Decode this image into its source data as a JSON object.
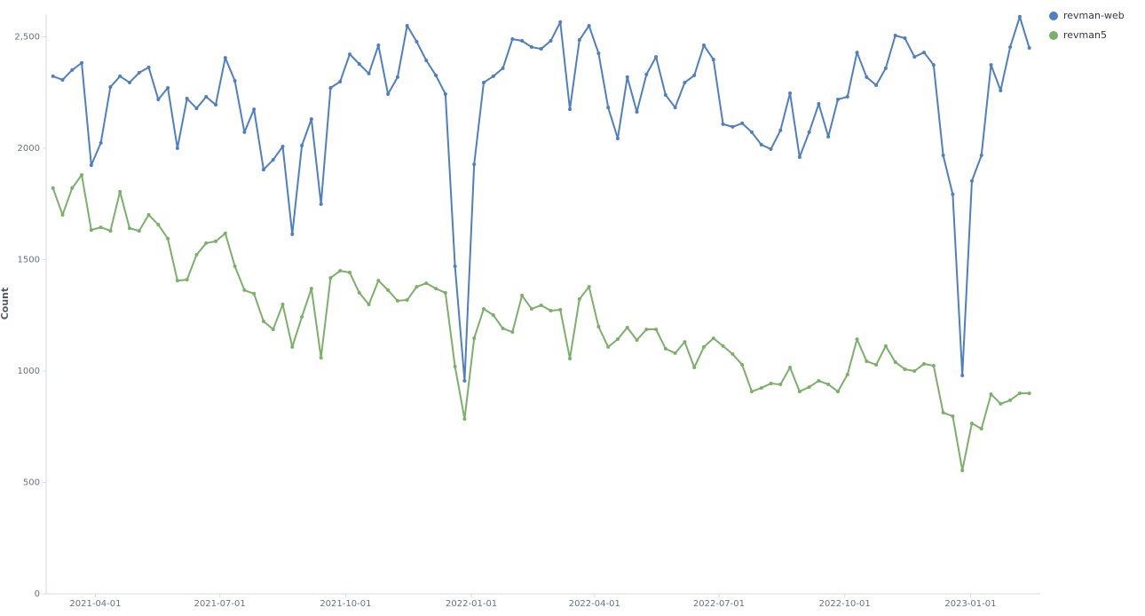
{
  "chart_data": {
    "type": "line",
    "y_label": "Count",
    "x": [
      "2021-03-01",
      "2021-03-08",
      "2021-03-15",
      "2021-03-22",
      "2021-03-29",
      "2021-04-05",
      "2021-04-12",
      "2021-04-19",
      "2021-04-26",
      "2021-05-03",
      "2021-05-10",
      "2021-05-17",
      "2021-05-24",
      "2021-05-31",
      "2021-06-07",
      "2021-06-14",
      "2021-06-21",
      "2021-06-28",
      "2021-07-05",
      "2021-07-12",
      "2021-07-19",
      "2021-07-26",
      "2021-08-02",
      "2021-08-09",
      "2021-08-16",
      "2021-08-23",
      "2021-08-30",
      "2021-09-06",
      "2021-09-13",
      "2021-09-20",
      "2021-09-27",
      "2021-10-04",
      "2021-10-11",
      "2021-10-18",
      "2021-10-25",
      "2021-11-01",
      "2021-11-08",
      "2021-11-15",
      "2021-11-22",
      "2021-11-29",
      "2021-12-06",
      "2021-12-13",
      "2021-12-20",
      "2021-12-27",
      "2022-01-03",
      "2022-01-10",
      "2022-01-17",
      "2022-01-24",
      "2022-01-31",
      "2022-02-07",
      "2022-02-14",
      "2022-02-21",
      "2022-02-28",
      "2022-03-07",
      "2022-03-14",
      "2022-03-21",
      "2022-03-28",
      "2022-04-04",
      "2022-04-11",
      "2022-04-18",
      "2022-04-25",
      "2022-05-02",
      "2022-05-09",
      "2022-05-16",
      "2022-05-23",
      "2022-05-30",
      "2022-06-06",
      "2022-06-13",
      "2022-06-20",
      "2022-06-27",
      "2022-07-04",
      "2022-07-11",
      "2022-07-18",
      "2022-07-25",
      "2022-08-01",
      "2022-08-08",
      "2022-08-15",
      "2022-08-22",
      "2022-08-29",
      "2022-09-05",
      "2022-09-12",
      "2022-09-19",
      "2022-09-26",
      "2022-10-03",
      "2022-10-10",
      "2022-10-17",
      "2022-10-24",
      "2022-10-31",
      "2022-11-07",
      "2022-11-14",
      "2022-11-21",
      "2022-11-28",
      "2022-12-05",
      "2022-12-12",
      "2022-12-19",
      "2022-12-26",
      "2023-01-02",
      "2023-01-09",
      "2023-01-16",
      "2023-01-23",
      "2023-01-30",
      "2023-02-06",
      "2023-02-13"
    ],
    "series": [
      {
        "name": "revman-web",
        "color": "#4f7fc0",
        "values": [
          2323,
          2307,
          2351,
          2383,
          1924,
          2024,
          2275,
          2323,
          2295,
          2339,
          2363,
          2219,
          2271,
          2000,
          2223,
          2179,
          2231,
          2195,
          2406,
          2303,
          2072,
          2175,
          1904,
          1948,
          2008,
          1614,
          2012,
          2131,
          1749,
          2271,
          2299,
          2422,
          2378,
          2335,
          2462,
          2243,
          2319,
          2550,
          2478,
          2394,
          2327,
          2243,
          1470,
          956,
          1928,
          2295,
          2323,
          2359,
          2490,
          2482,
          2454,
          2446,
          2482,
          2566,
          2175,
          2486,
          2550,
          2426,
          2183,
          2044,
          2319,
          2163,
          2331,
          2410,
          2239,
          2183,
          2295,
          2327,
          2462,
          2398,
          2108,
          2096,
          2112,
          2072,
          2016,
          1996,
          2080,
          2247,
          1960,
          2072,
          2199,
          2052,
          2219,
          2231,
          2430,
          2319,
          2283,
          2359,
          2506,
          2494,
          2410,
          2430,
          2374,
          1968,
          1793,
          980,
          1853,
          1968,
          2374,
          2259,
          2454,
          2590,
          2450
        ]
      },
      {
        "name": "revman5",
        "color": "#7bb069",
        "values": [
          1821,
          1701,
          1821,
          1880,
          1633,
          1645,
          1629,
          1805,
          1641,
          1629,
          1701,
          1657,
          1594,
          1406,
          1410,
          1522,
          1574,
          1582,
          1618,
          1470,
          1363,
          1347,
          1223,
          1187,
          1299,
          1108,
          1243,
          1370,
          1060,
          1418,
          1450,
          1442,
          1351,
          1299,
          1406,
          1363,
          1315,
          1319,
          1378,
          1394,
          1370,
          1351,
          1020,
          785,
          1147,
          1279,
          1251,
          1191,
          1175,
          1339,
          1279,
          1295,
          1271,
          1275,
          1056,
          1323,
          1378,
          1199,
          1108,
          1143,
          1195,
          1139,
          1187,
          1187,
          1100,
          1080,
          1131,
          1016,
          1108,
          1147,
          1112,
          1076,
          1028,
          908,
          924,
          944,
          940,
          1016,
          908,
          928,
          956,
          940,
          908,
          984,
          1143,
          1044,
          1028,
          1112,
          1040,
          1008,
          1000,
          1032,
          1024,
          813,
          797,
          554,
          765,
          741,
          896,
          853,
          869,
          900,
          900
        ]
      }
    ],
    "xlim": [
      "2021-02-24",
      "2023-02-21"
    ],
    "xticks": [
      "2021-04-01",
      "2021-07-01",
      "2021-10-01",
      "2022-01-01",
      "2022-04-01",
      "2022-07-01",
      "2022-10-01",
      "2023-01-01"
    ],
    "ylim": [
      0,
      2600
    ],
    "yticks": [
      0,
      500,
      1000,
      1500,
      2000,
      {
        "value": 2500,
        "label": "2,500"
      }
    ],
    "yticks_labels_extra": null,
    "grid": false,
    "legend": "top-right"
  }
}
